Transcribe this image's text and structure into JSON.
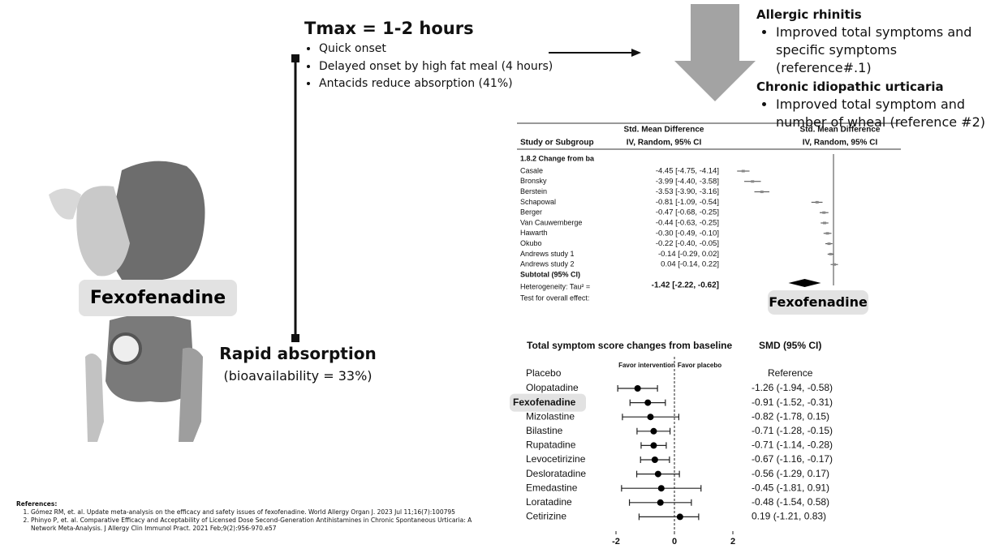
{
  "drug_label": "Fexofenadine",
  "pk": {
    "title": "Tmax = 1-2 hours",
    "bullets": [
      "Quick onset",
      "Delayed onset by high fat meal (4 hours)",
      "Antacids reduce absorption (41%)"
    ]
  },
  "absorption": {
    "title": "Rapid absorption",
    "subtitle": "(bioavailability = 33%)"
  },
  "indications": [
    {
      "title": "Allergic rhinitis",
      "bullets": [
        "Improved total symptoms and specific symptoms (reference#.1)"
      ]
    },
    {
      "title": "Chronic idiopathic urticaria",
      "bullets": [
        "Improved total symptom and number of wheal (reference #2)"
      ]
    }
  ],
  "forest1": {
    "study_header": "Study or Subgroup",
    "col_header": [
      "Std. Mean Difference",
      "IV, Random, 95% CI"
    ],
    "subgroup": "1.8.2 Change from ba",
    "studies": [
      "Casale",
      "Bronsky",
      "Berstein",
      "Schapowal",
      "Berger",
      "Van Cauwemberge",
      "Hawarth",
      "Okubo",
      "Andrews study 1",
      "Andrews study 2"
    ],
    "estimates": [
      -4.45,
      -3.99,
      -3.53,
      -0.81,
      -0.47,
      -0.44,
      -0.3,
      -0.22,
      -0.14,
      0.04
    ],
    "lower": [
      -4.75,
      -4.4,
      -3.9,
      -1.09,
      -0.68,
      -0.63,
      -0.49,
      -0.4,
      -0.29,
      -0.14
    ],
    "upper": [
      -4.14,
      -3.58,
      -3.16,
      -0.54,
      -0.25,
      -0.25,
      -0.1,
      -0.05,
      0.02,
      0.22
    ],
    "value_labels": [
      "-4.45 [-4.75, -4.14]",
      "-3.99 [-4.40, -3.58]",
      "-3.53 [-3.90, -3.16]",
      "-0.81 [-1.09, -0.54]",
      "-0.47 [-0.68, -0.25]",
      "-0.44 [-0.63, -0.25]",
      "-0.30 [-0.49, -0.10]",
      "-0.22 [-0.40, -0.05]",
      "-0.14 [-0.29, 0.02]",
      "0.04 [-0.14, 0.22]"
    ],
    "subtotal": "Subtotal (95% CI)",
    "heterogeneity": "Heterogeneity: Tau² =",
    "overall": {
      "estimate": -1.42,
      "lower": -2.22,
      "upper": -0.62,
      "label": "-1.42 [-2.22, -0.62]"
    },
    "test": "Test for overall effect:",
    "xlim": [
      -5,
      3
    ]
  },
  "forest2": {
    "title": "Total symptom score changes from baseline",
    "ci_header": "SMD (95% CI)",
    "favor_left": "Favor intervention",
    "favor_right": "Favor placebo",
    "reference": {
      "name": "Placebo",
      "label": "Reference"
    },
    "categories": [
      "Olopatadine",
      "Fexofenadine",
      "Mizolastine",
      "Bilastine",
      "Rupatadine",
      "Levocetirizine",
      "Desloratadine",
      "Emedastine",
      "Loratadine",
      "Cetirizine"
    ],
    "estimates": [
      -1.26,
      -0.91,
      -0.82,
      -0.71,
      -0.71,
      -0.67,
      -0.56,
      -0.45,
      -0.48,
      0.19
    ],
    "lower": [
      -1.94,
      -1.52,
      -1.78,
      -1.28,
      -1.14,
      -1.16,
      -1.29,
      -1.81,
      -1.54,
      -1.21
    ],
    "upper": [
      -0.58,
      -0.31,
      0.15,
      -0.15,
      -0.28,
      -0.17,
      0.17,
      0.91,
      0.58,
      0.83
    ],
    "value_labels": [
      "-1.26 (-1.94, -0.58)",
      "-0.91 (-1.52, -0.31)",
      "-0.82 (-1.78, 0.15)",
      "-0.71 (-1.28, -0.15)",
      "-0.71 (-1.14, -0.28)",
      "-0.67 (-1.16, -0.17)",
      "-0.56 (-1.29, 0.17)",
      "-0.45 (-1.81, 0.91)",
      "-0.48 (-1.54, 0.58)",
      "0.19 (-1.21, 0.83)"
    ],
    "xlim": [
      -2,
      2
    ],
    "xticks": [
      -2,
      0,
      2
    ]
  },
  "references": {
    "title": "References:",
    "items": [
      "Gómez RM, et. al. Update meta-analysis on the efficacy and safety issues of fexofenadine. World Allergy Organ J. 2023 Jul 11;16(7):100795",
      "Phinyo P, et. al. Comparative Efficacy and Acceptability of Licensed Dose Second-Generation Antihistamines in Chronic Spontaneous Urticaria: A Network Meta-Analysis. J Allergy Clin Immunol Pract. 2021 Feb;9(2):956-970.e57"
    ]
  }
}
